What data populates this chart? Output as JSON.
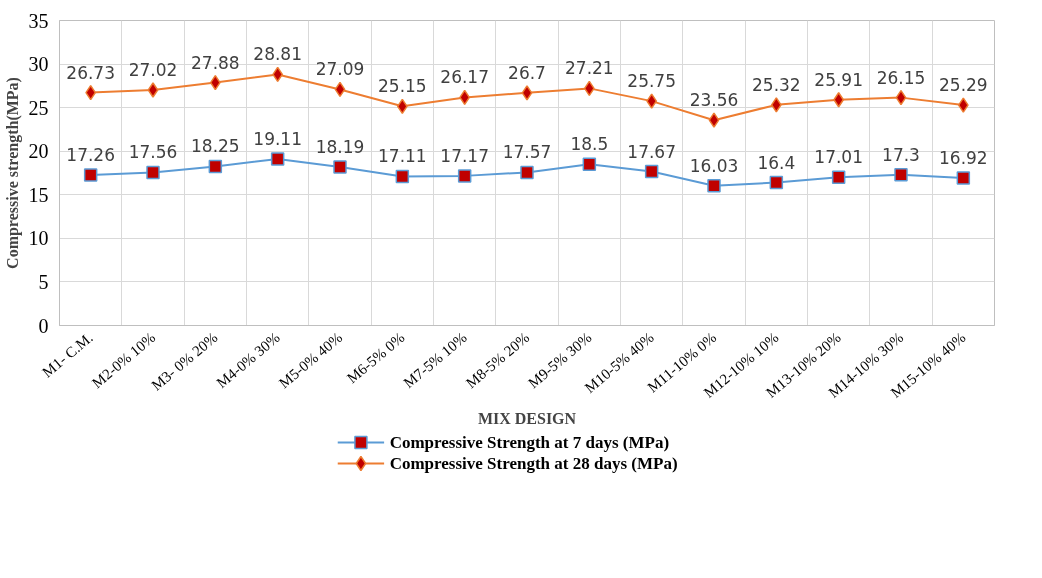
{
  "chart_data": {
    "type": "line",
    "xlabel": "MIX DESIGN",
    "ylabel": "Compressive strength(MPa)",
    "categories": [
      "M1- C.M.",
      "M2-0% 10%",
      "M3- 0% 20%",
      "M4-0% 30%",
      "M5-0% 40%",
      "M6-5% 0%",
      "M7-5% 10%",
      "M8-5% 20%",
      "M9-5% 30%",
      "M10-5% 40%",
      "M11-10% 0%",
      "M12-10% 10%",
      "M13-10% 20%",
      "M14-10% 30%",
      "M15-10% 40%"
    ],
    "series": [
      {
        "name": "Compressive Strength at 7 days (MPa)",
        "color": "#5b9bd5",
        "marker": "square",
        "values": [
          17.26,
          17.56,
          18.25,
          19.11,
          18.19,
          17.11,
          17.17,
          17.57,
          18.5,
          17.67,
          16.03,
          16.4,
          17.01,
          17.3,
          16.92
        ]
      },
      {
        "name": "Compressive Strength at 28 days (MPa)",
        "color": "#ed7d31",
        "marker": "diamond",
        "values": [
          26.73,
          27.02,
          27.88,
          28.81,
          27.09,
          25.15,
          26.17,
          26.7,
          27.21,
          25.75,
          23.56,
          25.32,
          25.91,
          26.15,
          25.29
        ]
      }
    ],
    "ylim": [
      0,
      35
    ],
    "yticks": [
      0,
      5,
      10,
      15,
      20,
      25,
      30,
      35
    ],
    "grid": true,
    "legend": "bottom",
    "data_labels": true
  }
}
